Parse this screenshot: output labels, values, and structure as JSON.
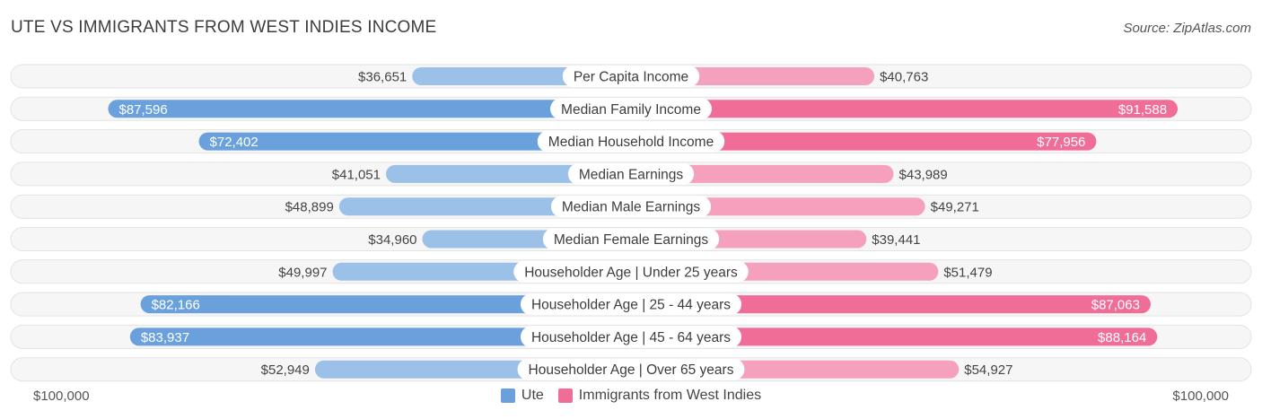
{
  "header": {
    "title": "UTE VS IMMIGRANTS FROM WEST INDIES INCOME",
    "source": "Source: ZipAtlas.com"
  },
  "axis": {
    "left_label": "$100,000",
    "right_label": "$100,000"
  },
  "legend": {
    "left": {
      "label": "Ute",
      "color": "#6aa1dd"
    },
    "right": {
      "label": "Immigrants from West Indies",
      "color": "#f06d98"
    }
  },
  "colors": {
    "left_strong": "#6aa1dd",
    "left_light": "#9cc1e9",
    "right_strong": "#f06d98",
    "right_light": "#f5a0bd",
    "track": "#efefef"
  },
  "chart_data": {
    "type": "bar",
    "orientation": "diverging-horizontal",
    "title": "UTE VS IMMIGRANTS FROM WEST INDIES INCOME",
    "xlim": [
      0,
      100000
    ],
    "categories": [
      "Per Capita Income",
      "Median Family Income",
      "Median Household Income",
      "Median Earnings",
      "Median Male Earnings",
      "Median Female Earnings",
      "Householder Age | Under 25 years",
      "Householder Age | 25 - 44 years",
      "Householder Age | 45 - 64 years",
      "Householder Age | Over 65 years"
    ],
    "series": [
      {
        "name": "Ute",
        "values": [
          36651,
          87596,
          72402,
          41051,
          48899,
          34960,
          49997,
          82166,
          83937,
          52949
        ],
        "labels": [
          "$36,651",
          "$87,596",
          "$72,402",
          "$41,051",
          "$48,899",
          "$34,960",
          "$49,997",
          "$82,166",
          "$83,937",
          "$52,949"
        ]
      },
      {
        "name": "Immigrants from West Indies",
        "values": [
          40763,
          91588,
          77956,
          43989,
          49271,
          39441,
          51479,
          87063,
          88164,
          54927
        ],
        "labels": [
          "$40,763",
          "$91,588",
          "$77,956",
          "$43,989",
          "$49,271",
          "$39,441",
          "$51,479",
          "$87,063",
          "$88,164",
          "$54,927"
        ]
      }
    ]
  }
}
